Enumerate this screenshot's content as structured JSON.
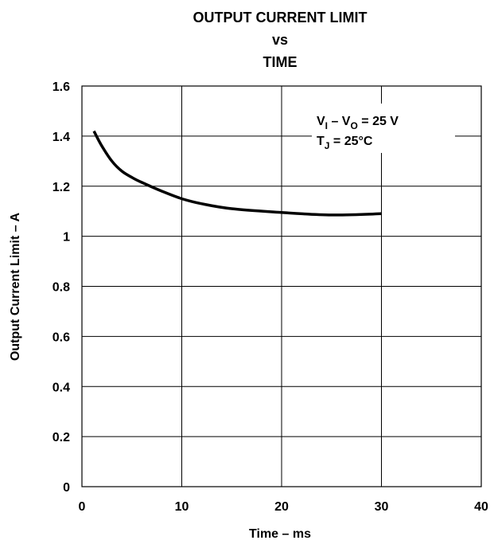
{
  "chart_data": {
    "type": "line",
    "title_lines": [
      "OUTPUT CURRENT LIMIT",
      "vs",
      "TIME"
    ],
    "xlabel": "Time – ms",
    "ylabel": "Output Current Limit – A",
    "xlim": [
      0,
      40
    ],
    "ylim": [
      0,
      1.6
    ],
    "x_ticks": [
      0,
      10,
      20,
      30,
      40
    ],
    "x_tick_labels": [
      "0",
      "10",
      "20",
      "30",
      "40"
    ],
    "y_ticks": [
      0,
      0.2,
      0.4,
      0.6,
      0.8,
      1.0,
      1.2,
      1.4,
      1.6
    ],
    "y_tick_labels": [
      "0",
      "0.2",
      "0.4",
      "0.6",
      "0.8",
      "1",
      "1.2",
      "1.4",
      "1.6"
    ],
    "grid": true,
    "annotation": {
      "line1": {
        "v1": "V",
        "sub1": "I",
        "dash": " – V",
        "sub2": "O",
        "tail": " = 25 V"
      },
      "line2": {
        "t": "T",
        "sub": "J",
        "tail": " = 25°C"
      }
    },
    "series": [
      {
        "x": [
          1.2,
          2,
          3,
          4,
          5,
          6,
          8,
          10,
          12,
          15,
          20,
          25,
          30
        ],
        "y": [
          1.42,
          1.36,
          1.3,
          1.26,
          1.235,
          1.215,
          1.18,
          1.15,
          1.13,
          1.11,
          1.095,
          1.085,
          1.09
        ]
      }
    ]
  }
}
